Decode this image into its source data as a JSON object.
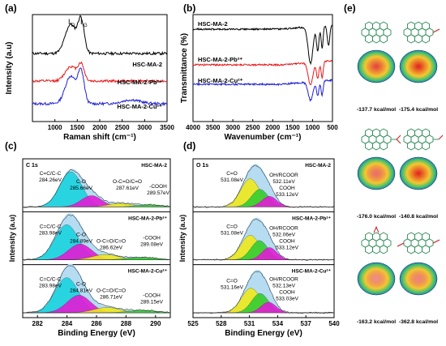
{
  "figure": {
    "panel_letters": [
      "(a)",
      "(b)",
      "(c)",
      "(d)",
      "(e)"
    ]
  },
  "chart_data": [
    {
      "panel": "(a)",
      "type": "line",
      "xlabel": "Raman shift (cm⁻¹)",
      "ylabel": "Intensity (a.u)",
      "xlim": [
        500,
        3500
      ],
      "xticks": [
        1000,
        1500,
        2000,
        2500,
        3000,
        3500
      ],
      "peak_labels": [
        "I",
        "D",
        "I",
        "G"
      ],
      "series": [
        {
          "name": "HSC-MA-2",
          "color": "#000000",
          "offset": 2,
          "peaks": [
            [
              1350,
              0.9,
              120
            ],
            [
              1585,
              1.0,
              70
            ]
          ]
        },
        {
          "name": "HSC-MA-2-Pb²⁺",
          "color": "#e8191a",
          "offset": 1,
          "peaks": [
            [
              1350,
              0.45,
              120
            ],
            [
              1585,
              0.5,
              70
            ]
          ]
        },
        {
          "name": "HSC-MA-2-Cu²⁺",
          "color": "#1f1fd6",
          "offset": 0,
          "peaks": [
            [
              1350,
              0.85,
              120
            ],
            [
              1585,
              0.95,
              70
            ],
            [
              2700,
              0.12,
              200
            ]
          ]
        }
      ]
    },
    {
      "panel": "(b)",
      "type": "line",
      "xlabel": "Wavenumber (cm⁻¹)",
      "ylabel": "Transmittance (%)",
      "xlim": [
        4000,
        500
      ],
      "xticks": [
        4000,
        3500,
        3000,
        2500,
        2000,
        1500,
        1000,
        500
      ],
      "series": [
        {
          "name": "HSC-MA-2",
          "color": "#000000",
          "offset": 2,
          "dips": [
            [
              1050,
              0.9,
              60
            ],
            [
              870,
              0.6,
              30
            ],
            [
              760,
              0.55,
              25
            ],
            [
              600,
              0.5,
              30
            ]
          ]
        },
        {
          "name": "HSC-MA-2-Pb²⁺",
          "color": "#e8191a",
          "offset": 1,
          "dips": [
            [
              1050,
              0.55,
              60
            ],
            [
              870,
              0.4,
              30
            ],
            [
              760,
              0.4,
              25
            ]
          ]
        },
        {
          "name": "HSC-MA-2-Cu²⁺",
          "color": "#1f1fd6",
          "offset": 0,
          "dips": [
            [
              1050,
              0.45,
              60
            ],
            [
              870,
              0.35,
              30
            ],
            [
              760,
              0.35,
              25
            ]
          ]
        }
      ]
    },
    {
      "panel": "(c)",
      "type": "area",
      "xlabel": "Binding Energy (eV)",
      "ylabel": "Intensity (a.u)",
      "xlim": [
        281,
        291
      ],
      "xticks": [
        282,
        284,
        286,
        288,
        290
      ],
      "corner_label": "C 1s",
      "subpanels": [
        {
          "name": "HSC-MA-2",
          "peaks": [
            {
              "label": "C=C/C-C",
              "value": "284.26eV",
              "center": 284.26,
              "height": 1.0,
              "width": 0.75,
              "color": "#19d3df"
            },
            {
              "label": "C-O",
              "value": "285.66eV",
              "center": 285.66,
              "height": 0.32,
              "width": 0.7,
              "color": "#e21bd6"
            },
            {
              "label": "O-C=O/C=O",
              "value": "287.61eV",
              "center": 287.61,
              "height": 0.1,
              "width": 0.8,
              "color": "#f0e81b"
            },
            {
              "label": "-COOH",
              "value": "289.57eV",
              "center": 289.57,
              "height": 0.06,
              "width": 0.9,
              "color": "#33cc33"
            }
          ]
        },
        {
          "name": "HSC-MA-2-Pb²⁺",
          "peaks": [
            {
              "label": "C=C/C-C",
              "value": "283.98eV",
              "center": 283.98,
              "height": 1.0,
              "width": 0.8,
              "color": "#19d3df"
            },
            {
              "label": "C-O",
              "value": "284.89eV",
              "center": 284.89,
              "height": 0.45,
              "width": 0.8,
              "color": "#e21bd6"
            },
            {
              "label": "O-C=O/C=O",
              "value": "286.62eV",
              "center": 286.62,
              "height": 0.15,
              "width": 0.9,
              "color": "#f0e81b"
            },
            {
              "label": "-COOH",
              "value": "289.08eV",
              "center": 289.08,
              "height": 0.07,
              "width": 1.0,
              "color": "#33cc33"
            }
          ]
        },
        {
          "name": "HSC-MA-2-Cu²⁺",
          "peaks": [
            {
              "label": "C=C/C-C",
              "value": "283.98eV",
              "center": 283.98,
              "height": 1.0,
              "width": 0.8,
              "color": "#19d3df"
            },
            {
              "label": "C-O",
              "value": "284.81eV",
              "center": 284.81,
              "height": 0.5,
              "width": 0.8,
              "color": "#e21bd6"
            },
            {
              "label": "O-C=O/C=O",
              "value": "286.71eV",
              "center": 286.71,
              "height": 0.15,
              "width": 0.9,
              "color": "#f0e81b"
            },
            {
              "label": "-COOH",
              "value": "289.15eV",
              "center": 289.15,
              "height": 0.07,
              "width": 1.0,
              "color": "#33cc33"
            }
          ]
        }
      ]
    },
    {
      "panel": "(d)",
      "type": "area",
      "xlabel": "Binding Energy (eV)",
      "ylabel": "Intensity (a.u)",
      "xlim": [
        525,
        540
      ],
      "xticks": [
        525,
        528,
        531,
        534,
        537,
        540
      ],
      "corner_label": "O 1s",
      "subpanels": [
        {
          "name": "HSC-MA-2",
          "peaks": [
            {
              "label": "C=O",
              "value": "531.08eV",
              "center": 531.08,
              "height": 0.8,
              "width": 1.0,
              "color": "#f0e81b"
            },
            {
              "label": "OH/RCOOR",
              "value": "532.11eV",
              "center": 532.11,
              "height": 0.5,
              "width": 0.9,
              "color": "#33cc33"
            },
            {
              "label": "COOH",
              "value": "533.12eV",
              "center": 533.12,
              "height": 0.3,
              "width": 0.8,
              "color": "#e21bd6"
            }
          ]
        },
        {
          "name": "HSC-MA-2-Pb²⁺",
          "peaks": [
            {
              "label": "C=O",
              "value": "531.08eV",
              "center": 531.08,
              "height": 0.7,
              "width": 1.0,
              "color": "#f0e81b"
            },
            {
              "label": "OH/RCOOR",
              "value": "532.06eV",
              "center": 532.06,
              "height": 0.55,
              "width": 0.9,
              "color": "#33cc33"
            },
            {
              "label": "COOH",
              "value": "533.12eV",
              "center": 533.12,
              "height": 0.35,
              "width": 0.8,
              "color": "#e21bd6"
            }
          ]
        },
        {
          "name": "HSC-MA-2-Cu²⁺",
          "peaks": [
            {
              "label": "C=O",
              "value": "531.16eV",
              "center": 531.16,
              "height": 0.7,
              "width": 1.0,
              "color": "#f0e81b"
            },
            {
              "label": "OH/RCOOR",
              "value": "532.13eV",
              "center": 532.13,
              "height": 0.55,
              "width": 0.9,
              "color": "#33cc33"
            },
            {
              "label": "COOH",
              "value": "533.03eV",
              "center": 533.03,
              "height": 0.3,
              "width": 0.8,
              "color": "#e21bd6"
            }
          ]
        }
      ]
    }
  ],
  "panel_e": {
    "energies": [
      {
        "label": "-137.7 kcal/mol",
        "substituent": "none"
      },
      {
        "label": "-175.4 kcal/mol",
        "substituent": "OH"
      },
      {
        "label": "-176.0 kcal/mol",
        "substituent": "COOH"
      },
      {
        "label": "-140.8 kcal/mol",
        "substituent": "CHO"
      },
      {
        "label": "-163.2 kcal/mol",
        "substituent": "epoxy"
      },
      {
        "label": "-362.8 kcal/mol",
        "substituent": "OH-2"
      }
    ],
    "map_colors": [
      "#e02020",
      "#2040e0"
    ]
  }
}
